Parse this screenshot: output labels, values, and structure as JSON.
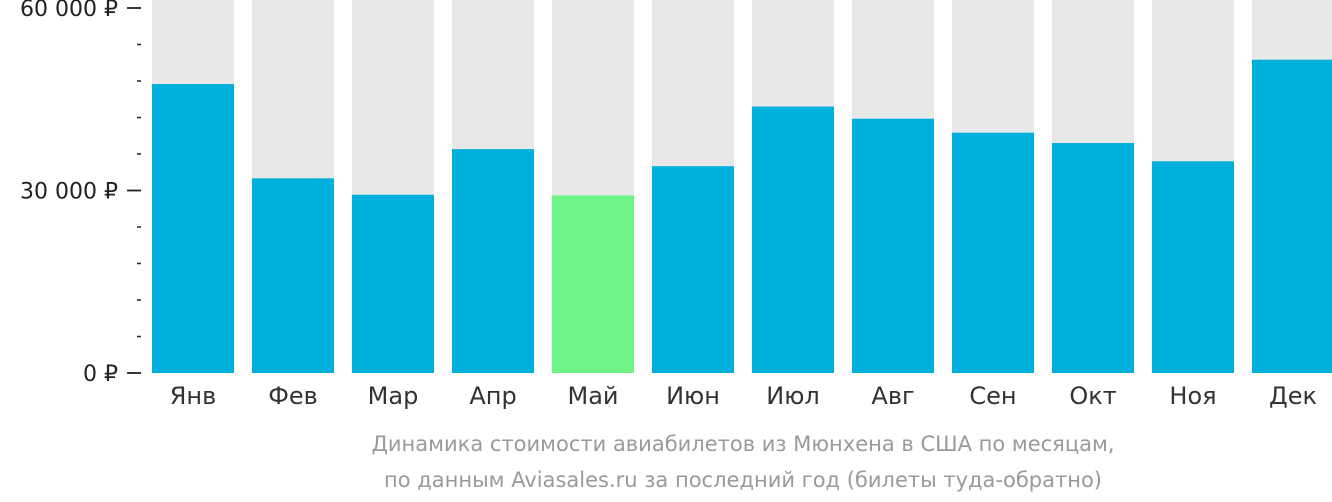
{
  "chart_data": {
    "type": "bar",
    "categories": [
      "Янв",
      "Фев",
      "Мар",
      "Апр",
      "Май",
      "Июн",
      "Июл",
      "Авг",
      "Сен",
      "Окт",
      "Ноя",
      "Дек"
    ],
    "values": [
      47500,
      32000,
      29300,
      36800,
      29200,
      34000,
      43800,
      41800,
      39500,
      37800,
      34800,
      51500
    ],
    "highlight_index": 4,
    "ylim": [
      0,
      60000
    ],
    "yticks": [
      {
        "value": 0,
        "label": "0 ₽"
      },
      {
        "value": 30000,
        "label": "30 000 ₽"
      },
      {
        "value": 60000,
        "label": "60 000 ₽"
      }
    ],
    "minor_tick_step": 6000,
    "colors": {
      "bar": "#00b0dc",
      "highlight": "#6ef386",
      "track": "#e8e8e8",
      "axis": "#222222"
    },
    "caption_lines": [
      "Динамика стоимости авиабилетов из Мюнхена в США по месяцам,",
      "по данным Aviasales.ru за последний год (билеты туда-обратно)"
    ]
  }
}
